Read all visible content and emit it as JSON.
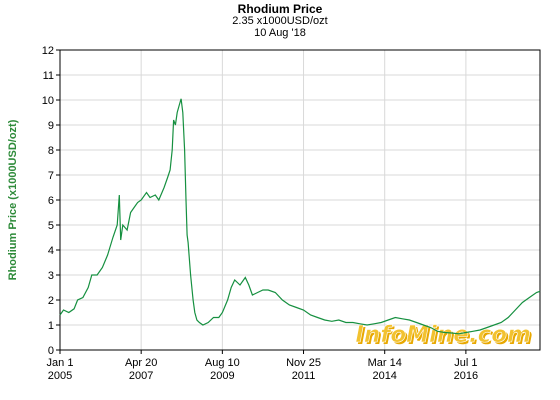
{
  "header": {
    "title": "Rhodium Price",
    "price_line": "2.35 x1000USD/ozt",
    "date_line": "10 Aug '18"
  },
  "watermark": {
    "text": "InfoMine.com",
    "color": "#f2c230",
    "shadow": "#e8a800"
  },
  "colors": {
    "line": "#169040",
    "grid": "#d9d9d9",
    "axis_label": "#2e8b3a"
  },
  "chart_data": {
    "type": "line",
    "title": "Rhodium Price",
    "ylabel": "Rhodium Price (x1000USD/ozt)",
    "xlabel": "",
    "ylim": [
      0,
      12
    ],
    "xlim": [
      2005.0,
      2018.6
    ],
    "yticks": [
      0,
      1,
      2,
      3,
      4,
      5,
      6,
      7,
      8,
      9,
      10,
      11,
      12
    ],
    "xticks": [
      {
        "x": 2005.0,
        "line1": "Jan 1",
        "line2": "2005"
      },
      {
        "x": 2007.3,
        "line1": "Apr 20",
        "line2": "2007"
      },
      {
        "x": 2009.6,
        "line1": "Aug 10",
        "line2": "2009"
      },
      {
        "x": 2011.9,
        "line1": "Nov 25",
        "line2": "2011"
      },
      {
        "x": 2014.2,
        "line1": "Mar 14",
        "line2": "2014"
      },
      {
        "x": 2016.5,
        "line1": "Jul 1",
        "line2": "2016"
      }
    ],
    "grid": true,
    "series": [
      {
        "points": [
          [
            2005.0,
            1.4
          ],
          [
            2005.1,
            1.6
          ],
          [
            2005.25,
            1.5
          ],
          [
            2005.4,
            1.65
          ],
          [
            2005.5,
            2.0
          ],
          [
            2005.65,
            2.1
          ],
          [
            2005.8,
            2.5
          ],
          [
            2005.9,
            3.0
          ],
          [
            2006.05,
            3.0
          ],
          [
            2006.2,
            3.3
          ],
          [
            2006.35,
            3.8
          ],
          [
            2006.5,
            4.5
          ],
          [
            2006.62,
            5.0
          ],
          [
            2006.68,
            6.2
          ],
          [
            2006.72,
            4.4
          ],
          [
            2006.78,
            5.0
          ],
          [
            2006.9,
            4.8
          ],
          [
            2007.0,
            5.5
          ],
          [
            2007.1,
            5.7
          ],
          [
            2007.2,
            5.9
          ],
          [
            2007.3,
            6.0
          ],
          [
            2007.45,
            6.3
          ],
          [
            2007.55,
            6.1
          ],
          [
            2007.7,
            6.2
          ],
          [
            2007.8,
            6.0
          ],
          [
            2007.95,
            6.5
          ],
          [
            2008.05,
            6.9
          ],
          [
            2008.12,
            7.2
          ],
          [
            2008.18,
            8.0
          ],
          [
            2008.22,
            9.2
          ],
          [
            2008.27,
            9.0
          ],
          [
            2008.32,
            9.5
          ],
          [
            2008.38,
            9.8
          ],
          [
            2008.43,
            10.05
          ],
          [
            2008.48,
            9.5
          ],
          [
            2008.53,
            8.0
          ],
          [
            2008.57,
            6.0
          ],
          [
            2008.6,
            4.6
          ],
          [
            2008.63,
            4.3
          ],
          [
            2008.7,
            3.0
          ],
          [
            2008.77,
            2.0
          ],
          [
            2008.82,
            1.5
          ],
          [
            2008.88,
            1.2
          ],
          [
            2008.95,
            1.1
          ],
          [
            2009.05,
            1.0
          ],
          [
            2009.2,
            1.1
          ],
          [
            2009.35,
            1.3
          ],
          [
            2009.5,
            1.3
          ],
          [
            2009.6,
            1.5
          ],
          [
            2009.75,
            2.0
          ],
          [
            2009.85,
            2.5
          ],
          [
            2009.95,
            2.8
          ],
          [
            2010.1,
            2.6
          ],
          [
            2010.25,
            2.9
          ],
          [
            2010.35,
            2.6
          ],
          [
            2010.45,
            2.2
          ],
          [
            2010.6,
            2.3
          ],
          [
            2010.75,
            2.4
          ],
          [
            2010.9,
            2.4
          ],
          [
            2011.1,
            2.3
          ],
          [
            2011.3,
            2.0
          ],
          [
            2011.5,
            1.8
          ],
          [
            2011.7,
            1.7
          ],
          [
            2011.9,
            1.6
          ],
          [
            2012.1,
            1.4
          ],
          [
            2012.3,
            1.3
          ],
          [
            2012.5,
            1.2
          ],
          [
            2012.7,
            1.15
          ],
          [
            2012.9,
            1.2
          ],
          [
            2013.1,
            1.1
          ],
          [
            2013.3,
            1.1
          ],
          [
            2013.5,
            1.05
          ],
          [
            2013.7,
            1.0
          ],
          [
            2013.9,
            1.05
          ],
          [
            2014.1,
            1.1
          ],
          [
            2014.3,
            1.2
          ],
          [
            2014.5,
            1.3
          ],
          [
            2014.7,
            1.25
          ],
          [
            2014.9,
            1.2
          ],
          [
            2015.1,
            1.1
          ],
          [
            2015.3,
            1.0
          ],
          [
            2015.5,
            0.9
          ],
          [
            2015.7,
            0.75
          ],
          [
            2015.9,
            0.7
          ],
          [
            2016.1,
            0.68
          ],
          [
            2016.3,
            0.65
          ],
          [
            2016.5,
            0.7
          ],
          [
            2016.7,
            0.75
          ],
          [
            2016.9,
            0.8
          ],
          [
            2017.1,
            0.9
          ],
          [
            2017.3,
            1.0
          ],
          [
            2017.5,
            1.1
          ],
          [
            2017.7,
            1.3
          ],
          [
            2017.9,
            1.6
          ],
          [
            2018.1,
            1.9
          ],
          [
            2018.3,
            2.1
          ],
          [
            2018.5,
            2.3
          ],
          [
            2018.6,
            2.35
          ]
        ]
      }
    ]
  }
}
